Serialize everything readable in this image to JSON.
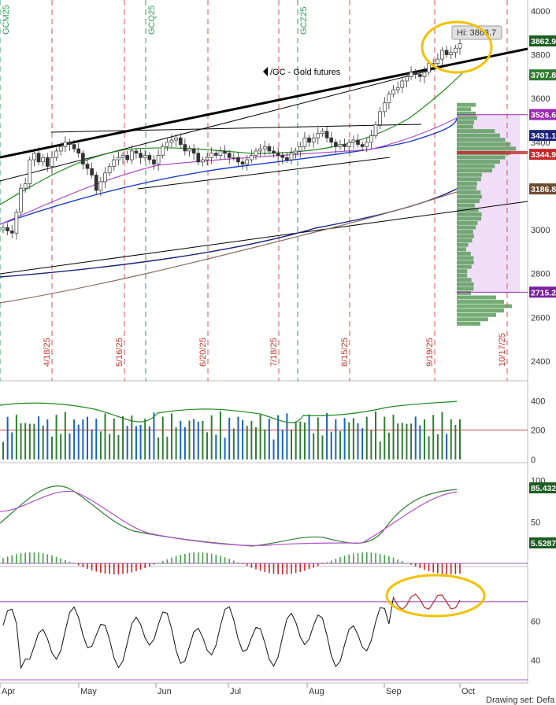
{
  "chart_data": {
    "type": "candlestick",
    "title": "/GC - Gold futures",
    "high_callout": "Hi: 3863.7",
    "x_months": [
      "Apr",
      "May",
      "Jun",
      "Jul",
      "Aug",
      "Sep",
      "Oct"
    ],
    "expiry_dates": [
      "4/18/25",
      "5/16/25",
      "6/20/25",
      "7/18/25",
      "8/15/25",
      "9/19/25",
      "10/17/25"
    ],
    "contract_rolls": [
      "GCM25",
      "GCQ25",
      "GCZ25"
    ],
    "bottom_right_text": "Drawing set: Defa",
    "price_panel": {
      "y_ticks": [
        2400,
        2600,
        2800,
        3000,
        3200,
        3400,
        3600,
        3800,
        4000
      ],
      "ylim": [
        2310,
        4050
      ],
      "level_tags": [
        {
          "value": "3862.9",
          "color": "#1b5e20"
        },
        {
          "value": "3707.8",
          "color": "#2e7d32"
        },
        {
          "value": "3526.6",
          "color": "#9c27b0"
        },
        {
          "value": "3431.1",
          "color": "#1a237e"
        },
        {
          "value": "3344.9",
          "color": "#c62828"
        },
        {
          "value": "3186.8",
          "color": "#6d4c2f"
        },
        {
          "value": "2715.2",
          "color": "#7b1fa2"
        }
      ],
      "close": [
        3010,
        2995,
        2985,
        3080,
        3190,
        3210,
        3320,
        3350,
        3310,
        3330,
        3290,
        3330,
        3360,
        3380,
        3400,
        3390,
        3370,
        3350,
        3300,
        3280,
        3250,
        3180,
        3220,
        3260,
        3290,
        3320,
        3330,
        3340,
        3320,
        3360,
        3350,
        3330,
        3340,
        3320,
        3300,
        3340,
        3380,
        3400,
        3410,
        3420,
        3390,
        3360,
        3370,
        3350,
        3310,
        3320,
        3330,
        3350,
        3340,
        3360,
        3350,
        3330,
        3330,
        3310,
        3300,
        3320,
        3340,
        3360,
        3370,
        3380,
        3360,
        3350,
        3340,
        3330,
        3320,
        3350,
        3360,
        3380,
        3420,
        3400,
        3420,
        3440,
        3450,
        3420,
        3400,
        3380,
        3390,
        3380,
        3400,
        3410,
        3390,
        3380,
        3400,
        3430,
        3480,
        3540,
        3580,
        3620,
        3640,
        3650,
        3680,
        3700,
        3720,
        3710,
        3700,
        3720,
        3760,
        3760,
        3780,
        3820,
        3800,
        3810,
        3830,
        3850
      ]
    },
    "volume_panel": {
      "y_ticks": [
        0,
        200,
        400
      ]
    },
    "stoch_panel": {
      "y_ticks": [
        50,
        100
      ],
      "tags": [
        {
          "value": "85.432",
          "color": "#1b5e20"
        },
        {
          "value": "5.5287",
          "color": "#1b5e20"
        }
      ]
    },
    "rsi_panel": {
      "y_ticks": [
        40,
        60
      ]
    }
  }
}
